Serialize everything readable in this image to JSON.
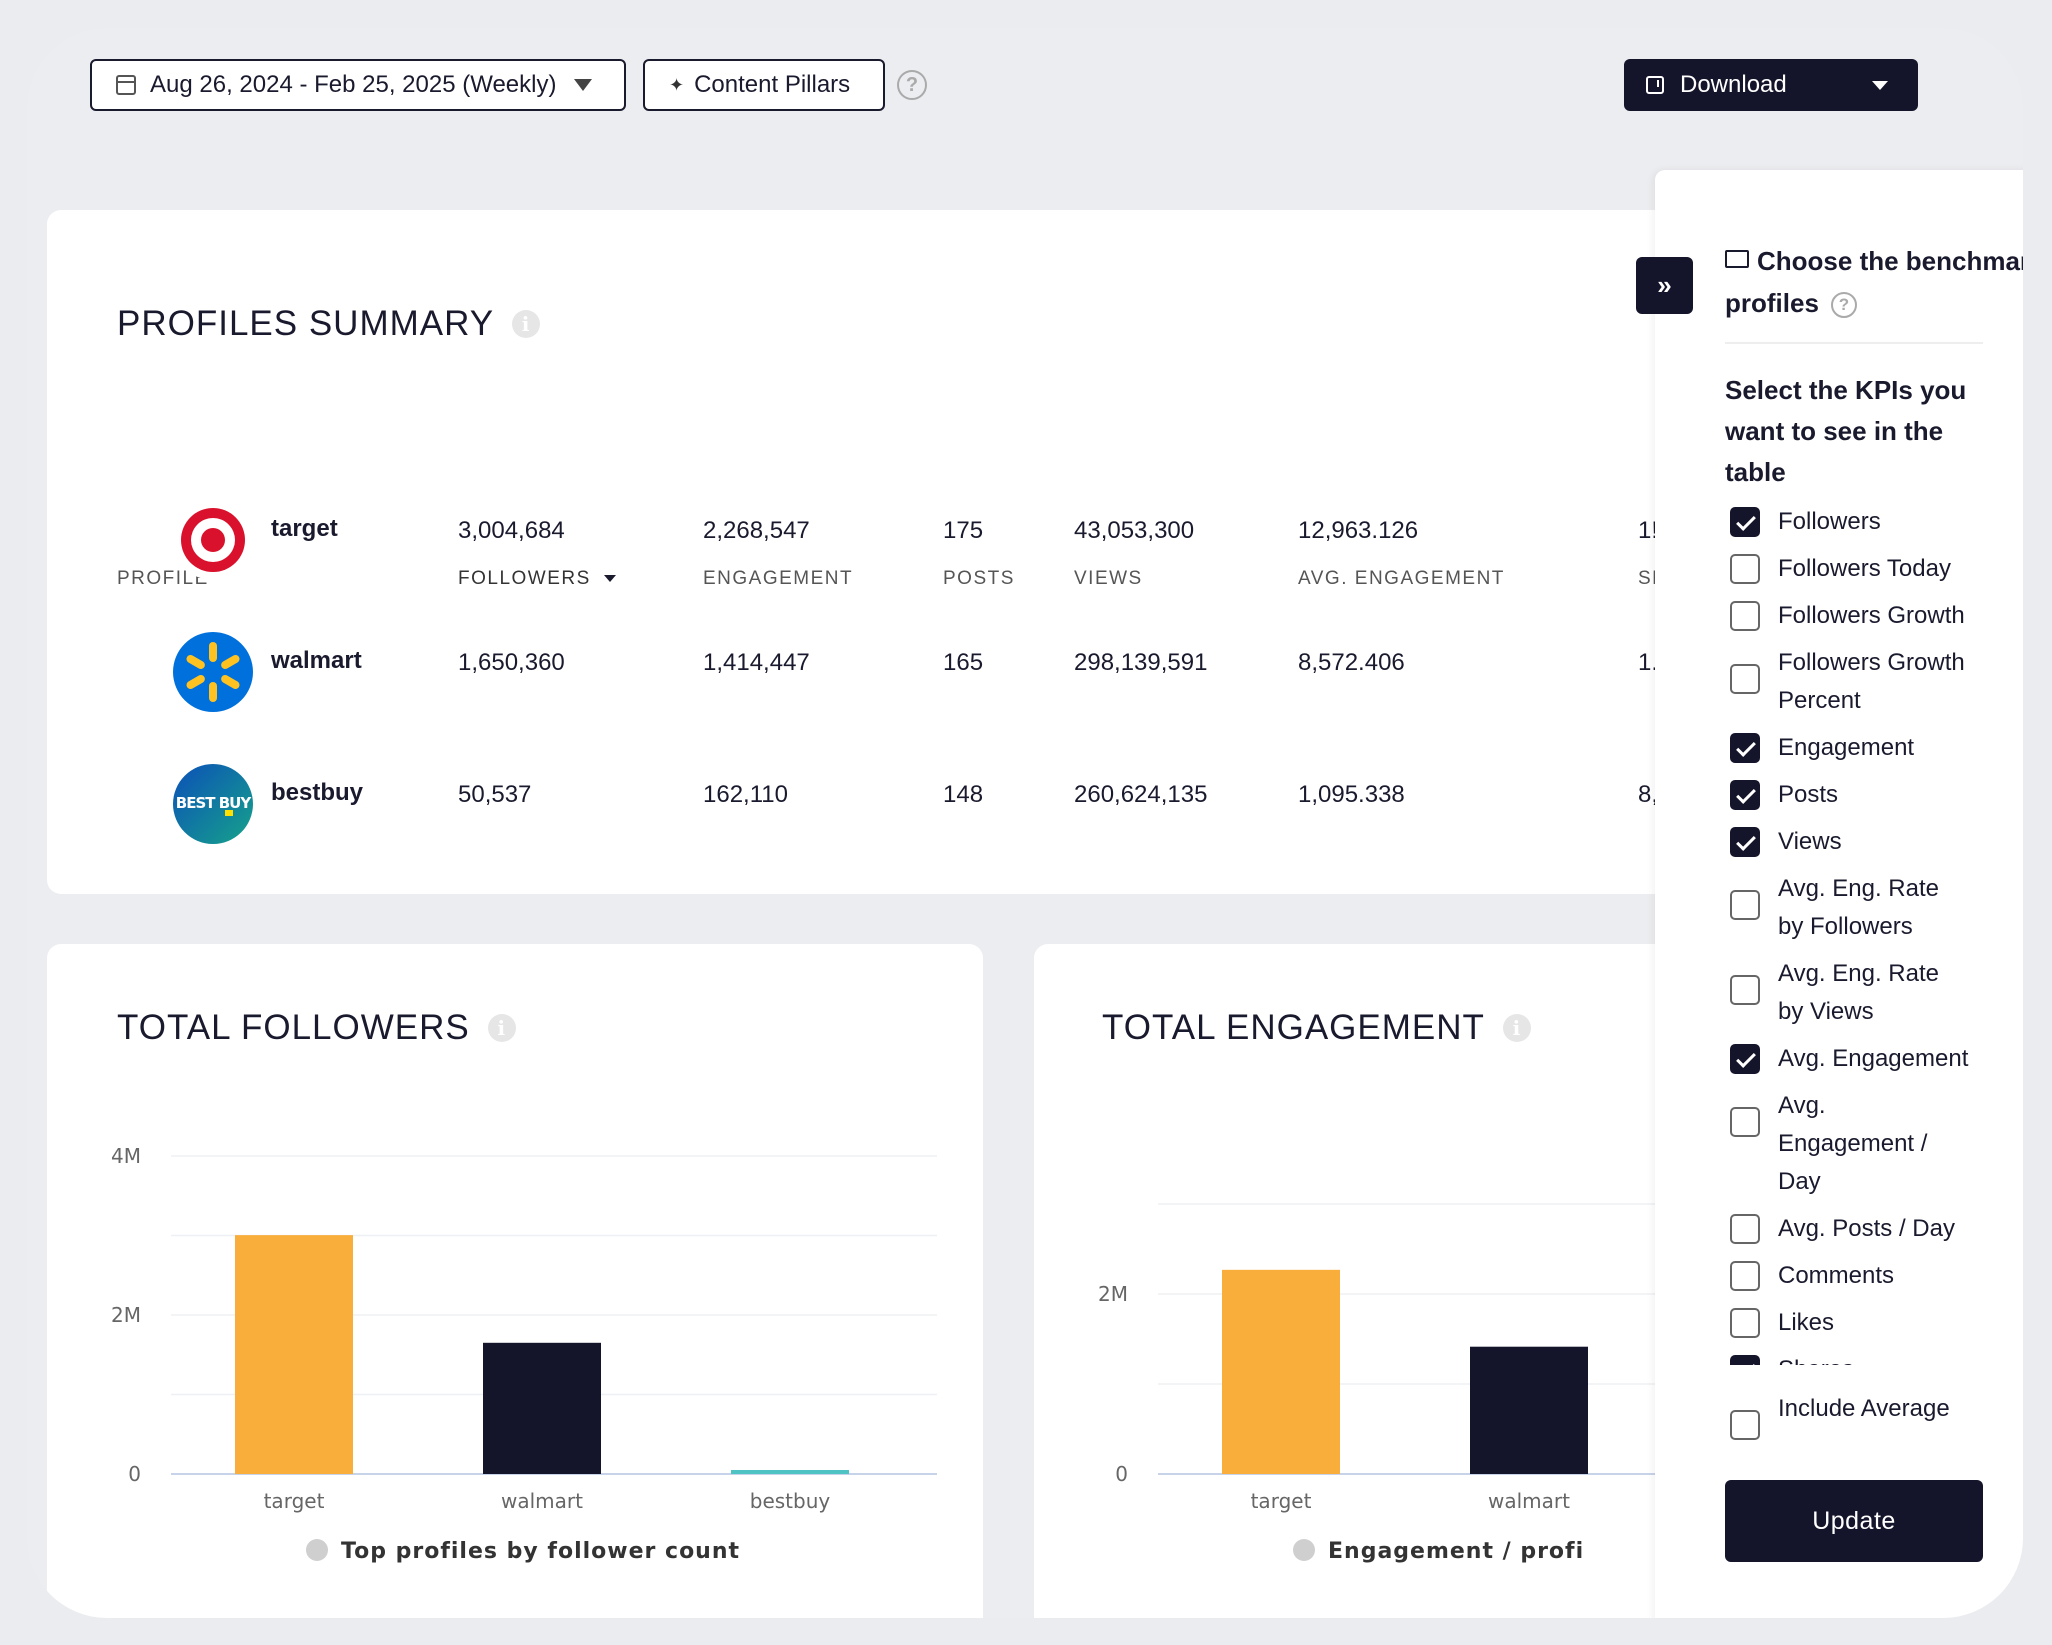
{
  "toolbar": {
    "date_range": "Aug 26, 2024 - Feb 25, 2025 (Weekly)",
    "content_pillars": "Content Pillars",
    "help": "?",
    "download": "Download"
  },
  "summary": {
    "title": "PROFILES SUMMARY",
    "info": "i",
    "columns": [
      "PROFILE",
      "FOLLOWERS",
      "ENGAGEMENT",
      "POSTS",
      "VIEWS",
      "AVG. ENGAGEMENT",
      "SH"
    ],
    "rows": [
      {
        "name": "target",
        "followers": "3,004,684",
        "engagement": "2,268,547",
        "posts": "175",
        "views": "43,053,300",
        "avg_engagement": "12,963.126",
        "next": "1!"
      },
      {
        "name": "walmart",
        "followers": "1,650,360",
        "engagement": "1,414,447",
        "posts": "165",
        "views": "298,139,591",
        "avg_engagement": "8,572.406",
        "next": "1."
      },
      {
        "name": "bestbuy",
        "followers": "50,537",
        "engagement": "162,110",
        "posts": "148",
        "views": "260,624,135",
        "avg_engagement": "1,095.338",
        "next": "8,"
      }
    ],
    "bestbuy_logo_text": "BEST BUY"
  },
  "followers_chart": {
    "title": "TOTAL FOLLOWERS",
    "legend": "Top profiles by follower count"
  },
  "engagement_chart": {
    "title": "TOTAL ENGAGEMENT",
    "legend": "Engagement / profi"
  },
  "chart_data": [
    {
      "type": "bar",
      "title": "TOTAL FOLLOWERS",
      "categories": [
        "target",
        "walmart",
        "bestbuy"
      ],
      "values": [
        3004684,
        1650360,
        50537
      ],
      "colors": [
        "#f9ad3a",
        "#14142b",
        "#4fc3c3"
      ],
      "ylim": [
        0,
        4000000
      ],
      "yticks": [
        {
          "value": 0,
          "label": "0"
        },
        {
          "value": 2000000,
          "label": "2M"
        },
        {
          "value": 4000000,
          "label": "4M"
        }
      ],
      "grid": true,
      "legend": "Top profiles by follower count"
    },
    {
      "type": "bar",
      "title": "TOTAL ENGAGEMENT",
      "categories": [
        "target",
        "walmart"
      ],
      "values": [
        2268547,
        1414447
      ],
      "colors": [
        "#f9ad3a",
        "#14142b"
      ],
      "ylim": [
        0,
        3000000
      ],
      "yticks": [
        {
          "value": 0,
          "label": "0"
        },
        {
          "value": 2000000,
          "label": "2M"
        }
      ],
      "grid": true,
      "legend": "Engagement / profi"
    }
  ],
  "panel": {
    "title": "Choose the benchmark profiles",
    "kpi_heading": "Select the KPIs you want to see in the table",
    "kpis": [
      {
        "label": "Followers",
        "checked": true
      },
      {
        "label": "Followers Today",
        "checked": false
      },
      {
        "label": "Followers Growth",
        "checked": false
      },
      {
        "label": "Followers Growth Percent",
        "checked": false
      },
      {
        "label": "Engagement",
        "checked": true
      },
      {
        "label": "Posts",
        "checked": true
      },
      {
        "label": "Views",
        "checked": true
      },
      {
        "label": "Avg. Eng. Rate by Followers",
        "checked": false
      },
      {
        "label": "Avg. Eng. Rate by Views",
        "checked": false
      },
      {
        "label": "Avg. Engagement",
        "checked": true
      },
      {
        "label": "Avg. Engagement / Day",
        "checked": false
      },
      {
        "label": "Avg. Posts / Day",
        "checked": false
      },
      {
        "label": "Comments",
        "checked": false
      },
      {
        "label": "Likes",
        "checked": false
      },
      {
        "label": "Shares",
        "checked": true
      },
      {
        "label": "S",
        "checked": true
      }
    ],
    "include_average": "Include Average",
    "update": "Update",
    "collapse": "»"
  }
}
